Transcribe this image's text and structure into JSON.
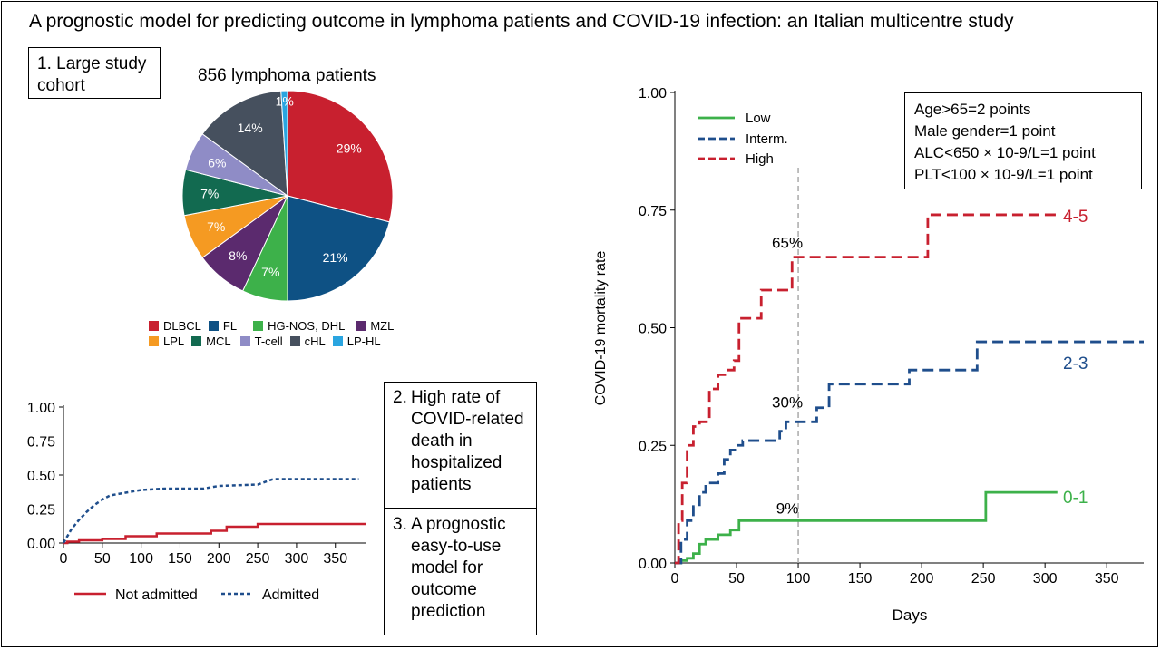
{
  "title": "A prognostic model for predicting outcome in lymphoma patients and COVID-19 infection: an Italian multicentre study",
  "boxes": {
    "study_cohort": "1. Large study cohort",
    "high_rate_num": "2.",
    "high_rate_text": "High rate of COVID-related death in hospitalized patients",
    "model_num": "3.",
    "model_text": "A prognostic easy-to-use model for outcome prediction"
  },
  "score_box": {
    "lines": [
      "Age>65=2 points",
      "Male gender=1 point",
      "ALC<650 × 10-9/L=1 point",
      "PLT<100 × 10-9/L=1 point"
    ]
  },
  "colors": {
    "low": "#3db14a",
    "interm": "#1f4e8c",
    "high": "#c8202f",
    "not_admitted": "#c8202f",
    "admitted": "#1f4e8c"
  },
  "chart_data": [
    {
      "type": "pie",
      "title": "856 lymphoma patients",
      "slices": [
        {
          "label": "DLBCL",
          "value": 29,
          "text": "29%",
          "color": "#c8202f"
        },
        {
          "label": "FL",
          "value": 21,
          "text": "21%",
          "color": "#0e5184"
        },
        {
          "label": "HG-NOS, DHL",
          "value": 7,
          "text": "7%",
          "color": "#3db14a"
        },
        {
          "label": "MZL",
          "value": 8,
          "text": "8%",
          "color": "#5b2a6e"
        },
        {
          "label": "LPL",
          "value": 7,
          "text": "7%",
          "color": "#f59a22"
        },
        {
          "label": "MCL",
          "value": 7,
          "text": "7%",
          "color": "#126a50"
        },
        {
          "label": "T-cell",
          "value": 6,
          "text": "6%",
          "color": "#8f8cc6"
        },
        {
          "label": "cHL",
          "value": 14,
          "text": "14%",
          "color": "#46505e"
        },
        {
          "label": "LP-HL",
          "value": 1,
          "text": "1%",
          "color": "#2aa5e0"
        }
      ],
      "legend_placement": "bottom"
    },
    {
      "type": "line",
      "xlim": [
        0,
        390
      ],
      "ylim": [
        0,
        1
      ],
      "x_ticks": [
        0,
        50,
        100,
        150,
        200,
        250,
        300,
        350
      ],
      "y_ticks": [
        "0.00",
        "0.25",
        "0.50",
        "0.75",
        "1.00"
      ],
      "legend_placement": "bottom",
      "series": [
        {
          "name": "Not admitted",
          "style": "solid",
          "color": "#c8202f",
          "points": [
            [
              0,
              0
            ],
            [
              5,
              0.01
            ],
            [
              20,
              0.02
            ],
            [
              50,
              0.03
            ],
            [
              80,
              0.05
            ],
            [
              120,
              0.07
            ],
            [
              190,
              0.09
            ],
            [
              210,
              0.12
            ],
            [
              250,
              0.14
            ],
            [
              390,
              0.14
            ]
          ]
        },
        {
          "name": "Admitted",
          "style": "dotted",
          "color": "#1f4e8c",
          "points": [
            [
              0,
              0
            ],
            [
              10,
              0.1
            ],
            [
              20,
              0.17
            ],
            [
              30,
              0.23
            ],
            [
              40,
              0.28
            ],
            [
              50,
              0.32
            ],
            [
              60,
              0.35
            ],
            [
              80,
              0.37
            ],
            [
              100,
              0.39
            ],
            [
              130,
              0.4
            ],
            [
              180,
              0.4
            ],
            [
              200,
              0.42
            ],
            [
              250,
              0.43
            ],
            [
              270,
              0.47
            ],
            [
              380,
              0.47
            ]
          ]
        }
      ]
    },
    {
      "type": "line",
      "xlabel": "Days",
      "ylabel": "COVID-19 mortality rate",
      "xlim": [
        0,
        380
      ],
      "ylim": [
        0,
        1
      ],
      "x_ticks": [
        0,
        50,
        100,
        150,
        200,
        250,
        300,
        350
      ],
      "y_ticks": [
        "0.00",
        "0.25",
        "0.50",
        "0.75",
        "1.00"
      ],
      "legend_placement": "top-left",
      "reference_line_x": 100,
      "annotations": [
        {
          "text": "65%",
          "x": 100,
          "y": 0.67
        },
        {
          "text": "30%",
          "x": 100,
          "y": 0.33
        },
        {
          "text": "9%",
          "x": 100,
          "y": 0.105
        }
      ],
      "series": [
        {
          "name": "Low",
          "style": "solid",
          "color": "#3db14a",
          "end_label": "0-1",
          "points": [
            [
              0,
              0
            ],
            [
              5,
              0.005
            ],
            [
              10,
              0.01
            ],
            [
              15,
              0.02
            ],
            [
              20,
              0.04
            ],
            [
              25,
              0.05
            ],
            [
              35,
              0.06
            ],
            [
              45,
              0.07
            ],
            [
              52,
              0.09
            ],
            [
              100,
              0.09
            ],
            [
              252,
              0.09
            ],
            [
              252,
              0.15
            ],
            [
              310,
              0.15
            ]
          ]
        },
        {
          "name": "Interm.",
          "style": "dashed",
          "color": "#1f4e8c",
          "end_label": "2-3",
          "points": [
            [
              0,
              0
            ],
            [
              5,
              0.05
            ],
            [
              10,
              0.09
            ],
            [
              15,
              0.12
            ],
            [
              20,
              0.15
            ],
            [
              25,
              0.17
            ],
            [
              30,
              0.17
            ],
            [
              35,
              0.19
            ],
            [
              40,
              0.22
            ],
            [
              45,
              0.24
            ],
            [
              50,
              0.25
            ],
            [
              55,
              0.26
            ],
            [
              65,
              0.26
            ],
            [
              85,
              0.28
            ],
            [
              90,
              0.3
            ],
            [
              115,
              0.3
            ],
            [
              115,
              0.33
            ],
            [
              125,
              0.38
            ],
            [
              190,
              0.38
            ],
            [
              190,
              0.41
            ],
            [
              245,
              0.41
            ],
            [
              245,
              0.47
            ],
            [
              380,
              0.47
            ]
          ]
        },
        {
          "name": "High",
          "style": "dashed",
          "color": "#c8202f",
          "end_label": "4-5",
          "points": [
            [
              0,
              0
            ],
            [
              3,
              0.09
            ],
            [
              6,
              0.17
            ],
            [
              10,
              0.25
            ],
            [
              15,
              0.29
            ],
            [
              20,
              0.3
            ],
            [
              28,
              0.37
            ],
            [
              35,
              0.4
            ],
            [
              42,
              0.41
            ],
            [
              48,
              0.43
            ],
            [
              52,
              0.52
            ],
            [
              62,
              0.52
            ],
            [
              70,
              0.58
            ],
            [
              88,
              0.58
            ],
            [
              95,
              0.65
            ],
            [
              205,
              0.65
            ],
            [
              205,
              0.74
            ],
            [
              310,
              0.74
            ]
          ]
        }
      ]
    }
  ]
}
